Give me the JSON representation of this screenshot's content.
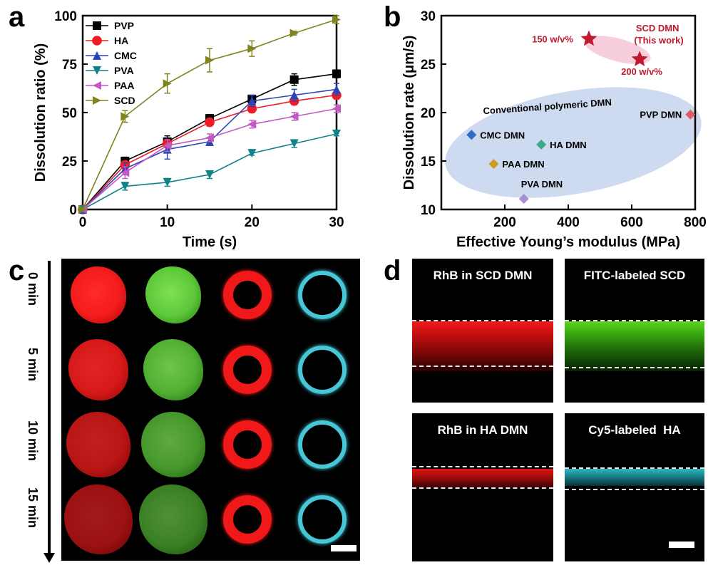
{
  "panel_labels": {
    "a": "a",
    "b": "b",
    "c": "c",
    "d": "d"
  },
  "chart_data": [
    {
      "panel": "a",
      "type": "line",
      "title": "",
      "xlabel": "Time (s)",
      "ylabel": "Dissolution ratio (%)",
      "xlim": [
        0,
        30
      ],
      "ylim": [
        0,
        100
      ],
      "xticks": [
        0,
        10,
        20,
        30
      ],
      "yticks": [
        0,
        25,
        50,
        75,
        100
      ],
      "x": [
        0,
        5,
        10,
        15,
        20,
        25,
        30
      ],
      "legend_position": "top-left",
      "series": [
        {
          "name": "PVP",
          "color": "#000000",
          "marker": "square",
          "values": [
            0,
            25,
            35,
            47,
            57,
            67,
            70
          ],
          "errors": [
            0,
            2,
            3,
            2,
            2,
            3,
            2
          ]
        },
        {
          "name": "HA",
          "color": "#ee1c24",
          "marker": "circle",
          "values": [
            0,
            23,
            34,
            45,
            52,
            56,
            59
          ],
          "errors": [
            0,
            2,
            2,
            2,
            2,
            2,
            2
          ]
        },
        {
          "name": "CMC",
          "color": "#2a45b6",
          "marker": "triangle-up",
          "values": [
            0,
            21,
            31,
            35,
            56,
            59,
            62
          ],
          "errors": [
            0,
            3,
            5,
            2,
            3,
            3,
            3
          ]
        },
        {
          "name": "PVA",
          "color": "#12828a",
          "marker": "triangle-down",
          "values": [
            0,
            12,
            14,
            18,
            29,
            34,
            39
          ],
          "errors": [
            0,
            2,
            2,
            2,
            1,
            2,
            1
          ]
        },
        {
          "name": "PAA",
          "color": "#c35ac1",
          "marker": "triangle-left",
          "values": [
            0,
            19,
            33,
            37,
            44,
            48,
            52
          ],
          "errors": [
            0,
            3,
            3,
            2,
            2,
            2,
            2
          ]
        },
        {
          "name": "SCD",
          "color": "#7f8420",
          "marker": "triangle-right",
          "values": [
            0,
            48,
            65,
            77,
            83,
            91,
            98
          ],
          "errors": [
            0,
            3,
            5,
            6,
            4,
            1,
            2
          ]
        }
      ]
    },
    {
      "panel": "b",
      "type": "scatter",
      "title": "",
      "xlabel": "Effective Young’s modulus (MPa)",
      "ylabel": "Dissolution rate (μm/s)",
      "xlim": [
        0,
        800
      ],
      "ylim": [
        10,
        30
      ],
      "xticks": [
        200,
        400,
        600,
        800
      ],
      "yticks": [
        10,
        15,
        20,
        25,
        30
      ],
      "group_label": "Conventional polymeric DMN",
      "highlight_title": "SCD DMN\n(This work)",
      "points": [
        {
          "name": "CMC DMN",
          "x": 95,
          "y": 17.7,
          "color": "#2e6bc2",
          "marker": "diamond"
        },
        {
          "name": "HA DMN",
          "x": 315,
          "y": 16.7,
          "color": "#3aa98b",
          "marker": "diamond"
        },
        {
          "name": "PAA DMN",
          "x": 165,
          "y": 14.7,
          "color": "#cf9a20",
          "marker": "diamond"
        },
        {
          "name": "PVA DMN",
          "x": 260,
          "y": 11.1,
          "color": "#a98ed0",
          "marker": "diamond"
        },
        {
          "name": "PVP DMN",
          "x": 785,
          "y": 19.8,
          "color": "#e05a68",
          "marker": "diamond"
        },
        {
          "name": "150 w/v%",
          "x": 465,
          "y": 27.6,
          "color": "#c0182f",
          "marker": "star"
        },
        {
          "name": "200 w/v%",
          "x": 625,
          "y": 25.5,
          "color": "#c0182f",
          "marker": "star"
        }
      ]
    }
  ],
  "panel_c": {
    "timepoints": [
      "0 min",
      "5 min",
      "10 min",
      "15 min"
    ]
  },
  "panel_d": {
    "titles": [
      "RhB in SCD DMN",
      "FITC-labeled SCD",
      "RhB in HA DMN",
      "Cy5-labeled  HA"
    ]
  }
}
